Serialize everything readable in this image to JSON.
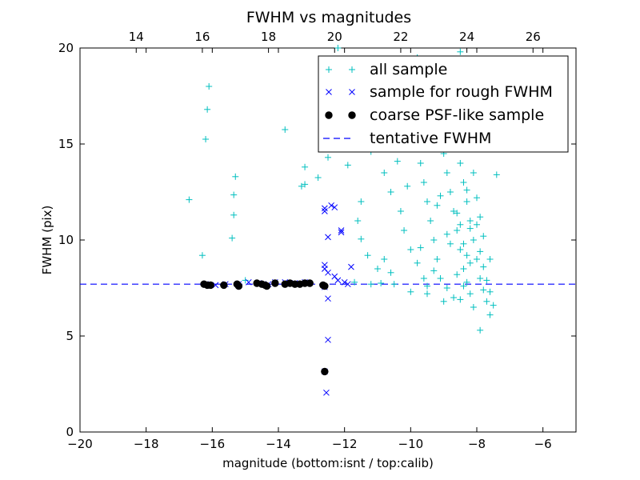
{
  "chart_data": {
    "type": "scatter",
    "title": "FWHM vs magnitudes",
    "xlabel": "magnitude (bottom:isnt / top:calib)",
    "ylabel": "FWHM (pix)",
    "xlim": [
      -20,
      -5
    ],
    "ylim": [
      0,
      20
    ],
    "xticks": [
      "−20",
      "−18",
      "−16",
      "−14",
      "−12",
      "−10",
      "−8",
      "−6"
    ],
    "xtick_values": [
      -20,
      -18,
      -16,
      -14,
      -12,
      -10,
      -8,
      -6
    ],
    "yticks": [
      "0",
      "5",
      "10",
      "15",
      "20"
    ],
    "ytick_values": [
      0,
      5,
      10,
      15,
      20
    ],
    "top_xticks": [
      "14",
      "16",
      "18",
      "20",
      "22",
      "24",
      "26"
    ],
    "top_xtick_values": [
      14,
      16,
      18,
      20,
      22,
      24,
      26
    ],
    "top_xlim": [
      12.3,
      27.3
    ],
    "legend_position": "top-right",
    "grid": false,
    "tentative_fwhm": 7.7,
    "series": [
      {
        "name": "all sample",
        "marker": "+",
        "color": "#00bfbf",
        "points": [
          [
            -16.1,
            18.0
          ],
          [
            -16.15,
            16.8
          ],
          [
            -16.2,
            15.25
          ],
          [
            -16.7,
            12.1
          ],
          [
            -16.3,
            9.2
          ],
          [
            -15.3,
            13.3
          ],
          [
            -15.35,
            12.35
          ],
          [
            -15.35,
            11.3
          ],
          [
            -15.4,
            10.1
          ],
          [
            -15.0,
            7.9
          ],
          [
            -13.8,
            15.75
          ],
          [
            -13.3,
            12.8
          ],
          [
            -13.2,
            12.9
          ],
          [
            -13.2,
            13.8
          ],
          [
            -12.8,
            13.25
          ],
          [
            -12.5,
            14.3
          ],
          [
            -12.3,
            14.8
          ],
          [
            -12.2,
            20.0
          ],
          [
            -11.9,
            13.9
          ],
          [
            -11.5,
            12.0
          ],
          [
            -11.6,
            11.0
          ],
          [
            -11.5,
            10.05
          ],
          [
            -11.3,
            9.2
          ],
          [
            -11.0,
            8.5
          ],
          [
            -10.8,
            9.0
          ],
          [
            -10.6,
            8.3
          ],
          [
            -11.7,
            7.8
          ],
          [
            -11.2,
            7.7
          ],
          [
            -10.9,
            7.75
          ],
          [
            -10.5,
            7.7
          ],
          [
            -11.0,
            15.5
          ],
          [
            -11.2,
            14.6
          ],
          [
            -10.8,
            13.5
          ],
          [
            -10.6,
            12.5
          ],
          [
            -10.3,
            11.5
          ],
          [
            -10.2,
            10.5
          ],
          [
            -10.0,
            9.5
          ],
          [
            -9.8,
            8.8
          ],
          [
            -9.6,
            8.0
          ],
          [
            -9.5,
            7.6
          ],
          [
            -10.2,
            17.0
          ],
          [
            -10.0,
            16.0
          ],
          [
            -9.9,
            15.0
          ],
          [
            -9.7,
            14.0
          ],
          [
            -9.6,
            13.0
          ],
          [
            -9.5,
            12.0
          ],
          [
            -9.4,
            11.0
          ],
          [
            -9.3,
            10.0
          ],
          [
            -9.2,
            9.0
          ],
          [
            -9.1,
            8.0
          ],
          [
            -9.8,
            19.5
          ],
          [
            -9.6,
            18.5
          ],
          [
            -9.4,
            17.5
          ],
          [
            -9.2,
            16.5
          ],
          [
            -9.1,
            15.5
          ],
          [
            -9.0,
            14.5
          ],
          [
            -8.9,
            13.5
          ],
          [
            -8.8,
            12.5
          ],
          [
            -8.7,
            11.5
          ],
          [
            -8.6,
            10.5
          ],
          [
            -8.5,
            9.5
          ],
          [
            -8.4,
            8.5
          ],
          [
            -8.3,
            7.8
          ],
          [
            -8.2,
            7.2
          ],
          [
            -8.1,
            6.5
          ],
          [
            -9.0,
            19.0
          ],
          [
            -8.9,
            18.0
          ],
          [
            -8.8,
            17.0
          ],
          [
            -8.7,
            16.0
          ],
          [
            -8.6,
            15.0
          ],
          [
            -8.5,
            14.0
          ],
          [
            -8.4,
            13.0
          ],
          [
            -8.3,
            12.0
          ],
          [
            -8.2,
            11.0
          ],
          [
            -8.1,
            10.0
          ],
          [
            -8.0,
            9.0
          ],
          [
            -7.9,
            8.0
          ],
          [
            -7.8,
            7.4
          ],
          [
            -7.7,
            6.8
          ],
          [
            -7.6,
            6.1
          ],
          [
            -8.5,
            19.8
          ],
          [
            -8.4,
            18.8
          ],
          [
            -8.3,
            17.8
          ],
          [
            -8.2,
            16.8
          ],
          [
            -8.1,
            15.8
          ],
          [
            -8.0,
            14.8
          ],
          [
            -8.1,
            13.5
          ],
          [
            -8.0,
            12.2
          ],
          [
            -7.9,
            11.2
          ],
          [
            -7.8,
            10.2
          ],
          [
            -7.9,
            9.4
          ],
          [
            -7.8,
            8.6
          ],
          [
            -7.7,
            7.9
          ],
          [
            -7.6,
            7.3
          ],
          [
            -7.5,
            6.6
          ],
          [
            -7.9,
            5.3
          ],
          [
            -7.4,
            13.4
          ],
          [
            -7.6,
            9.0
          ],
          [
            -8.7,
            7.0
          ],
          [
            -9.0,
            6.8
          ],
          [
            -9.5,
            7.2
          ],
          [
            -10.0,
            7.3
          ],
          [
            -8.8,
            9.8
          ],
          [
            -9.2,
            11.8
          ],
          [
            -8.5,
            10.8
          ],
          [
            -8.3,
            9.2
          ],
          [
            -8.6,
            8.2
          ],
          [
            -8.9,
            7.5
          ],
          [
            -9.3,
            8.4
          ],
          [
            -9.7,
            9.6
          ],
          [
            -10.1,
            12.8
          ],
          [
            -10.4,
            14.1
          ],
          [
            -10.7,
            15.2
          ],
          [
            -9.9,
            16.4
          ],
          [
            -9.4,
            15.6
          ],
          [
            -8.2,
            10.6
          ],
          [
            -8.4,
            9.8
          ],
          [
            -8.6,
            11.4
          ],
          [
            -8.3,
            12.6
          ],
          [
            -8.0,
            10.8
          ],
          [
            -8.2,
            8.8
          ],
          [
            -8.4,
            7.6
          ],
          [
            -8.5,
            6.9
          ],
          [
            -8.9,
            10.3
          ],
          [
            -9.1,
            12.3
          ]
        ]
      },
      {
        "name": "sample for rough FWHM",
        "marker": "x",
        "color": "#0000ff",
        "points": [
          [
            -16.2,
            7.7
          ],
          [
            -15.9,
            7.65
          ],
          [
            -15.6,
            7.7
          ],
          [
            -15.2,
            7.7
          ],
          [
            -14.9,
            7.8
          ],
          [
            -14.6,
            7.75
          ],
          [
            -14.3,
            7.7
          ],
          [
            -14.1,
            7.8
          ],
          [
            -13.8,
            7.8
          ],
          [
            -13.5,
            7.75
          ],
          [
            -13.2,
            7.8
          ],
          [
            -12.6,
            11.65
          ],
          [
            -12.6,
            11.5
          ],
          [
            -12.5,
            10.15
          ],
          [
            -12.4,
            11.8
          ],
          [
            -12.3,
            11.7
          ],
          [
            -12.1,
            10.5
          ],
          [
            -12.1,
            10.4
          ],
          [
            -12.6,
            8.7
          ],
          [
            -12.6,
            8.5
          ],
          [
            -12.5,
            8.3
          ],
          [
            -12.3,
            8.1
          ],
          [
            -12.2,
            7.9
          ],
          [
            -12.0,
            7.8
          ],
          [
            -11.8,
            8.6
          ],
          [
            -11.9,
            7.7
          ],
          [
            -12.6,
            7.55
          ],
          [
            -12.5,
            6.95
          ],
          [
            -12.5,
            4.8
          ],
          [
            -12.55,
            2.05
          ],
          [
            -12.6,
            3.15
          ]
        ]
      },
      {
        "name": "coarse PSF-like sample",
        "marker": "o",
        "color": "#000000",
        "points": [
          [
            -16.25,
            7.7
          ],
          [
            -16.15,
            7.65
          ],
          [
            -16.05,
            7.65
          ],
          [
            -15.65,
            7.65
          ],
          [
            -15.25,
            7.7
          ],
          [
            -15.2,
            7.6
          ],
          [
            -14.65,
            7.75
          ],
          [
            -14.5,
            7.7
          ],
          [
            -14.4,
            7.65
          ],
          [
            -14.35,
            7.6
          ],
          [
            -14.1,
            7.75
          ],
          [
            -13.8,
            7.7
          ],
          [
            -13.65,
            7.75
          ],
          [
            -13.5,
            7.7
          ],
          [
            -13.35,
            7.7
          ],
          [
            -13.2,
            7.75
          ],
          [
            -13.05,
            7.75
          ],
          [
            -12.65,
            7.65
          ],
          [
            -12.6,
            7.6
          ],
          [
            -12.6,
            3.15
          ]
        ]
      },
      {
        "name": "tentative FWHM",
        "marker": "dashed-line",
        "color": "#0000ff"
      }
    ]
  }
}
